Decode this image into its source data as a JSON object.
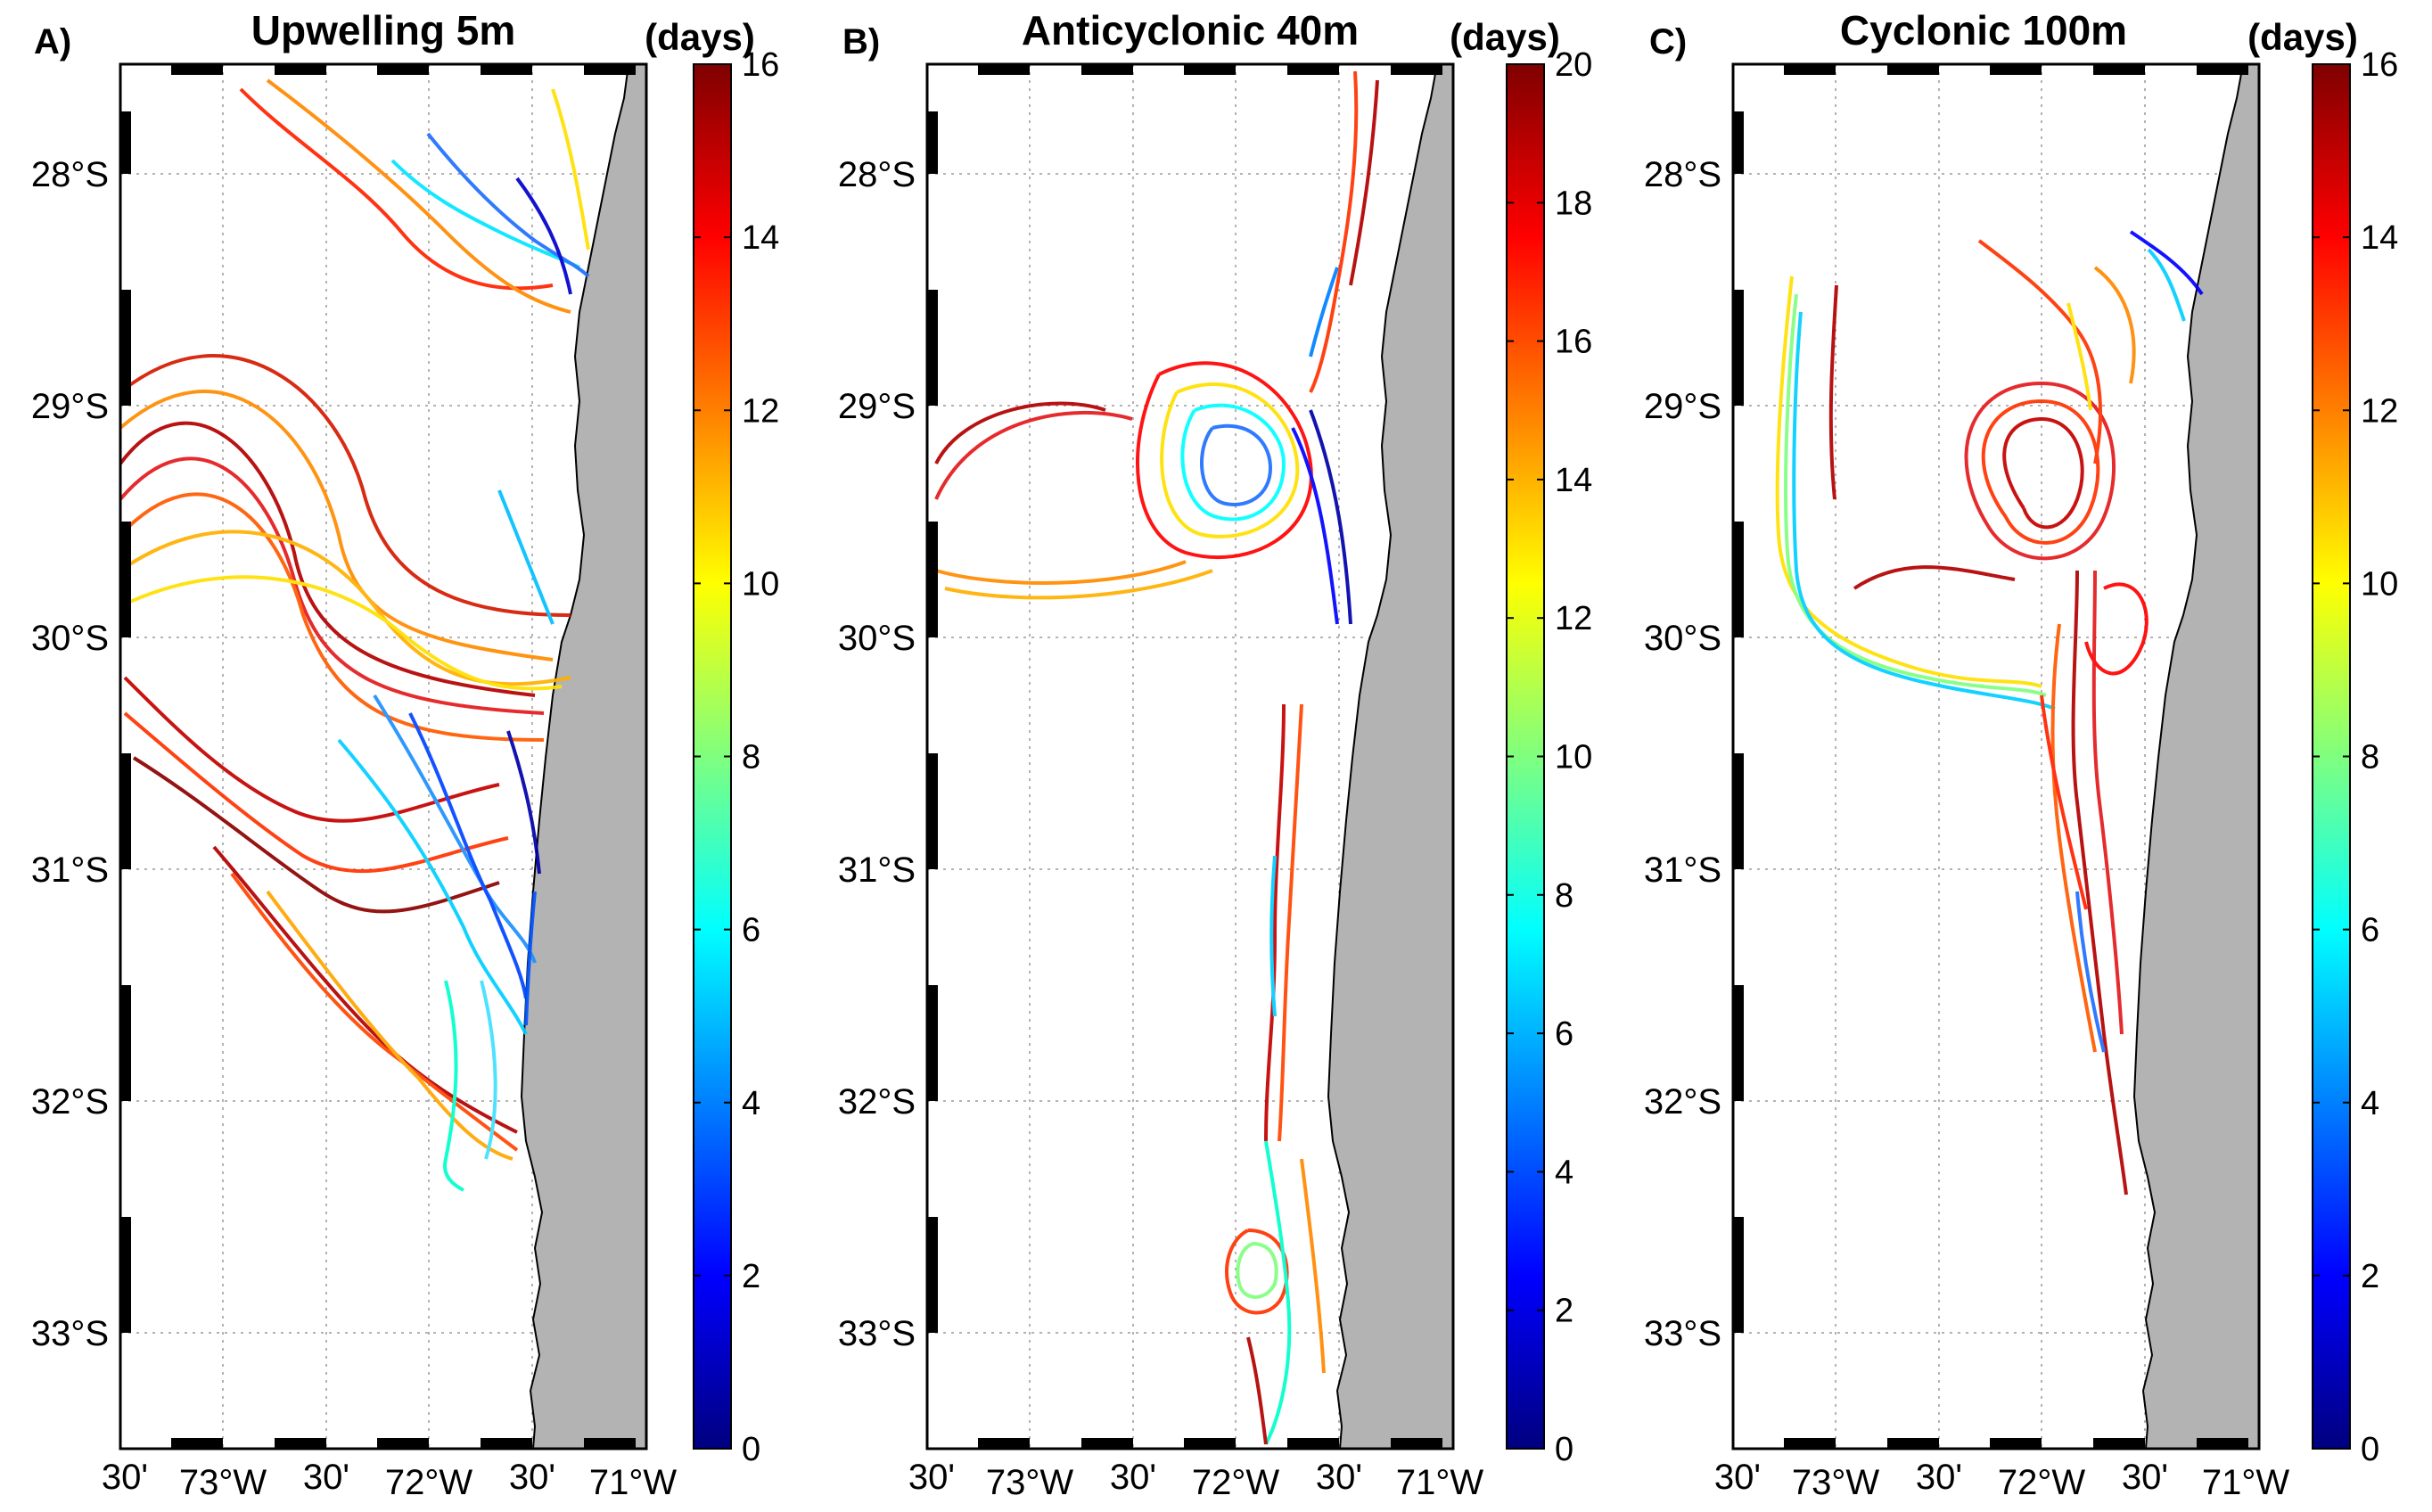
{
  "panels": [
    {
      "letter": "A)",
      "title": "Upwelling 5m",
      "unit_label": "(days)",
      "colorbar_ticks": [
        "0",
        "2",
        "4",
        "6",
        "8",
        "10",
        "12",
        "14",
        "16"
      ],
      "colorbar_max": 16
    },
    {
      "letter": "B)",
      "title": "Anticyclonic 40m",
      "unit_label": "(days)",
      "colorbar_ticks": [
        "0",
        "2",
        "4",
        "6",
        "8",
        "10",
        "12",
        "14",
        "16",
        "18",
        "20"
      ],
      "colorbar_max": 20
    },
    {
      "letter": "C)",
      "title": "Cyclonic 100m",
      "unit_label": "(days)",
      "colorbar_ticks": [
        "0",
        "2",
        "4",
        "6",
        "8",
        "10",
        "12",
        "14",
        "16"
      ],
      "colorbar_max": 16
    }
  ],
  "lat_labels": [
    "28°S",
    "29°S",
    "30°S",
    "31°S",
    "32°S",
    "33°S"
  ],
  "lon_labels": [
    "30'",
    "73°W",
    "30'",
    "72°W",
    "30'",
    "71°W"
  ],
  "colors": {
    "land": "#b3b3b3",
    "frame": "#000000",
    "grid": "#9a9a9a",
    "jet": [
      "#00007f",
      "#0000ff",
      "#007fff",
      "#00ffff",
      "#7fff7f",
      "#ffff00",
      "#ff7f00",
      "#ff0000",
      "#7f0000"
    ]
  }
}
